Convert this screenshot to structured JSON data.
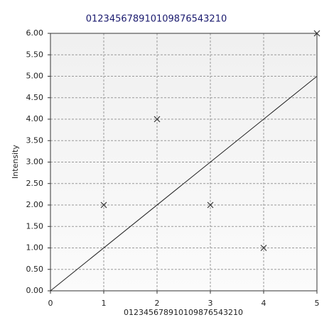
{
  "chart_data": {
    "type": "scatter",
    "title": "012345678910109876543210",
    "x_label": "012345678910109876543210",
    "y_label": "Intensity",
    "xlim": [
      0,
      5
    ],
    "xticks": [
      0,
      1,
      2,
      3,
      4,
      5
    ],
    "ylim": [
      0,
      6
    ],
    "yticks": [
      {
        "value": 0,
        "label": "0.00"
      },
      {
        "value": 0.5,
        "label": "0.50"
      },
      {
        "value": 1,
        "label": "1.00"
      },
      {
        "value": 1.5,
        "label": "1.50"
      },
      {
        "value": 2,
        "label": "2.00"
      },
      {
        "value": 2.5,
        "label": "2.50"
      },
      {
        "value": 3,
        "label": "3.00"
      },
      {
        "value": 3.5,
        "label": "3.50"
      },
      {
        "value": 4,
        "label": "4.00"
      },
      {
        "value": 4.5,
        "label": "4.50"
      },
      {
        "value": 5,
        "label": "5.00"
      },
      {
        "value": 5.5,
        "label": "5.50"
      },
      {
        "value": 6,
        "label": "6.00"
      }
    ],
    "grid": true,
    "series": [
      {
        "type": "scatter",
        "marker": "x",
        "color": "#333333",
        "x": [
          1,
          2,
          3,
          4,
          5
        ],
        "values": [
          2,
          4,
          2,
          1,
          6
        ]
      },
      {
        "type": "line",
        "color": "#222222",
        "x": [
          0,
          5
        ],
        "values": [
          0,
          5
        ]
      }
    ]
  }
}
